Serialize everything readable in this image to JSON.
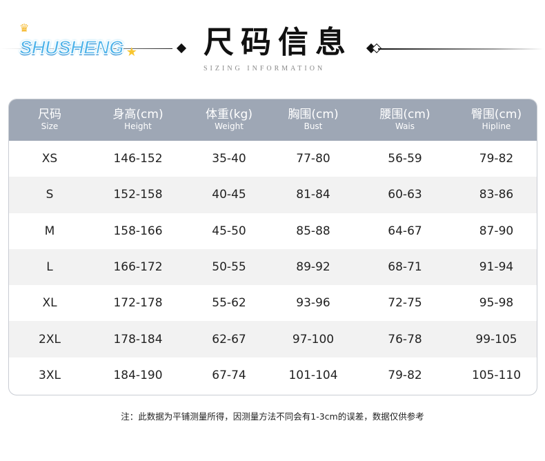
{
  "logo": {
    "text": "SHUSHENG"
  },
  "header": {
    "title": "尺码信息",
    "subtitle": "SIZING INFORMATION"
  },
  "table": {
    "columns": [
      {
        "zh": "尺码",
        "en": "Size"
      },
      {
        "zh": "身高(cm)",
        "en": "Height"
      },
      {
        "zh": "体重(kg)",
        "en": "Weight"
      },
      {
        "zh": "胸围(cm)",
        "en": "Bust"
      },
      {
        "zh": "腰围(cm)",
        "en": "Wais"
      },
      {
        "zh": "臀围(cm)",
        "en": "Hipline"
      }
    ],
    "rows": [
      [
        "XS",
        "146-152",
        "35-40",
        "77-80",
        "56-59",
        "79-82"
      ],
      [
        "S",
        "152-158",
        "40-45",
        "81-84",
        "60-63",
        "83-86"
      ],
      [
        "M",
        "158-166",
        "45-50",
        "85-88",
        "64-67",
        "87-90"
      ],
      [
        "L",
        "166-172",
        "50-55",
        "89-92",
        "68-71",
        "91-94"
      ],
      [
        "XL",
        "172-178",
        "55-62",
        "93-96",
        "72-75",
        "95-98"
      ],
      [
        "2XL",
        "178-184",
        "62-67",
        "97-100",
        "76-78",
        "99-105"
      ],
      [
        "3XL",
        "184-190",
        "67-74",
        "101-104",
        "79-82",
        "105-110"
      ]
    ]
  },
  "note": "注：此数据为平铺测量所得，因测量方法不同会有1-3cm的误差，数据仅供参考",
  "colors": {
    "header_bg": "#9ea7b5",
    "alt_row": "#f2f2f2",
    "logo": "#4fb4ea"
  }
}
